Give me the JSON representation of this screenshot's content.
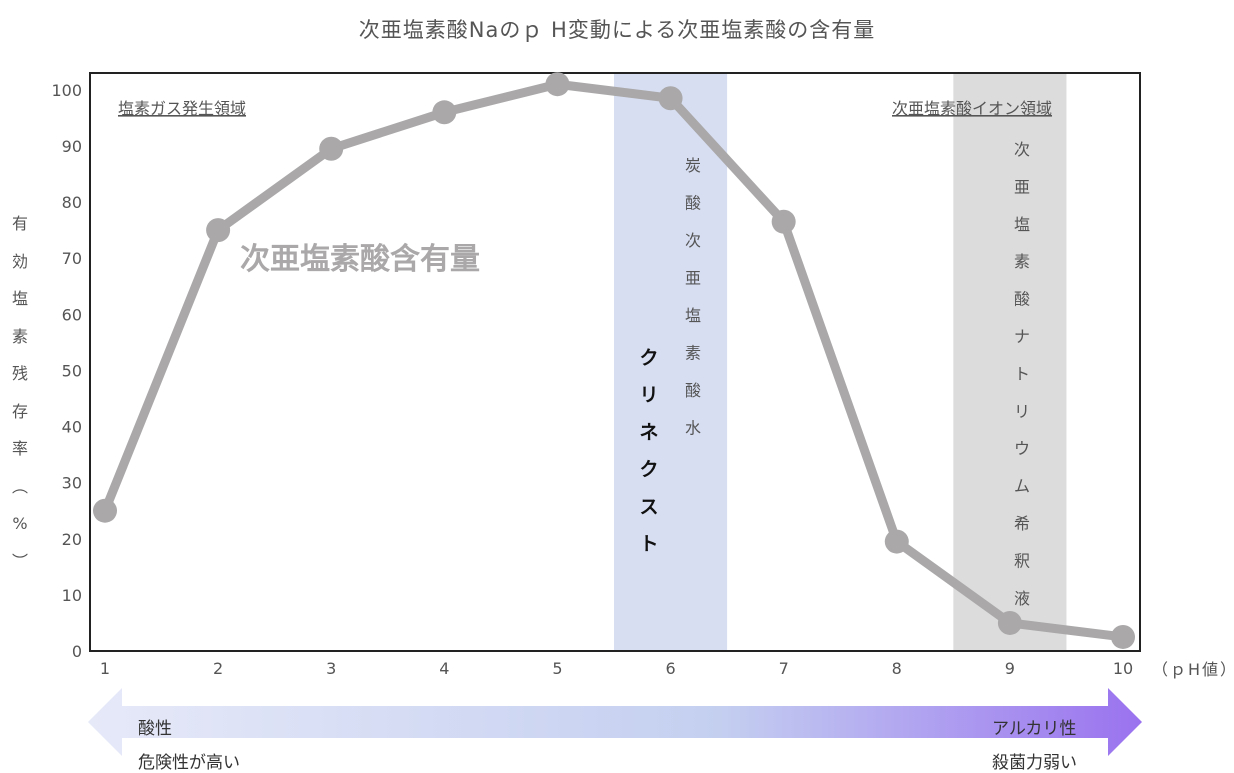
{
  "title": "次亜塩素酸Naのｐ H変動による次亜塩素酸の含有量",
  "ylabel": "有効塩素残存率︵%︶",
  "xunit": "（ｐH値）",
  "annotations": {
    "chlorine_gas_region": "塩素ガス発生領域",
    "hypochlorite_ion_region": "次亜塩素酸イオン領域",
    "curve_label": "次亜塩素酸含有量",
    "band_6_product": "クリネクスト",
    "band_6_label": "炭酸次亜塩素酸水",
    "band_9_label": "次亜塩素酸ナトリウム希釈液"
  },
  "arrow": {
    "left_line1": "酸性",
    "left_line2": "危険性が高い",
    "right_line1": "アルカリ性",
    "right_line2": "殺菌力弱い"
  },
  "chart_data": {
    "type": "line",
    "x": [
      1,
      2,
      3,
      4,
      5,
      6,
      7,
      8,
      9,
      10
    ],
    "values": [
      25,
      75,
      89.5,
      96,
      101,
      98.5,
      76.5,
      19.5,
      5,
      2.5
    ],
    "xlim": [
      1,
      10
    ],
    "ylim": [
      0,
      103
    ],
    "xticks": [
      1,
      2,
      3,
      4,
      5,
      6,
      7,
      8,
      9,
      10
    ],
    "yticks": [
      0,
      10,
      20,
      30,
      40,
      50,
      60,
      70,
      80,
      90,
      100
    ],
    "bands": [
      {
        "from": 5.5,
        "to": 6.5,
        "color": "#d7def2"
      },
      {
        "from": 8.5,
        "to": 9.5,
        "color": "#dcdcdc"
      }
    ],
    "line_color": "#aaa8a8",
    "grid": false
  },
  "colors": {
    "arrow_start": "#e6e9f8",
    "arrow_mid": "#c4cff0",
    "arrow_end": "#9a72ef"
  }
}
